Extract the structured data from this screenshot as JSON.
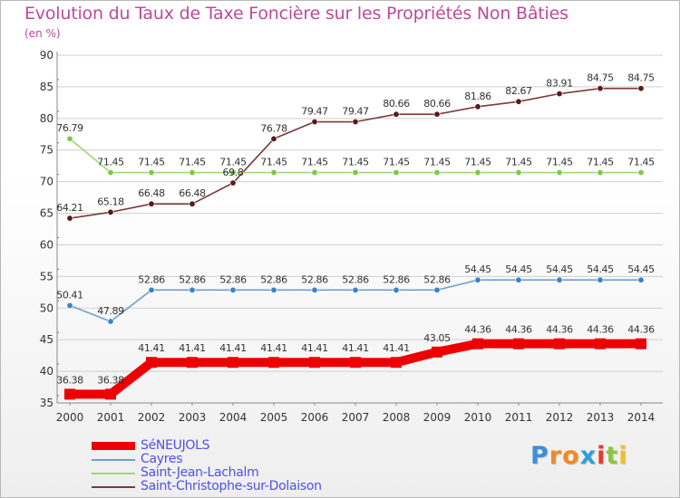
{
  "title": "Evolution du Taux de Taxe Foncière sur les Propriétés Non Bâties",
  "subtitle": "(en %)",
  "logo": {
    "letters": [
      "P",
      "r",
      "o",
      "x",
      "i",
      "t",
      "i"
    ],
    "colors": [
      "#3d8fd8",
      "#f08a24",
      "#f08a24",
      "#2f9fd8",
      "#e63b2e",
      "#8cc63f",
      "#f0c020"
    ]
  },
  "colors": {
    "title": "#c0489a",
    "axis_text": "#333333",
    "grid": "#cfcfcf",
    "legend_text": "#5050e6"
  },
  "chart_data": {
    "type": "line",
    "title": "Evolution du Taux de Taxe Foncière sur les Propriétés Non Bâties",
    "ylabel": "(en %)",
    "xlabel": "",
    "ylim": [
      35,
      90
    ],
    "yticks": [
      35,
      40,
      45,
      50,
      55,
      60,
      65,
      70,
      75,
      80,
      85,
      90
    ],
    "grid": "horizontal",
    "x": [
      "2000",
      "2001",
      "2002",
      "2003",
      "2004",
      "2005",
      "2006",
      "2007",
      "2008",
      "2009",
      "2010",
      "2011",
      "2012",
      "2013",
      "2014"
    ],
    "series": [
      {
        "name": "SéNEUJOLS",
        "color": "#ee0000",
        "thick": true,
        "values": [
          36.38,
          36.38,
          41.41,
          41.41,
          41.41,
          41.41,
          41.41,
          41.41,
          41.41,
          43.05,
          44.36,
          44.36,
          44.36,
          44.36,
          44.36
        ],
        "labels": [
          "36.38",
          "36.38",
          "41.41",
          "41.41",
          "41.41",
          "41.41",
          "41.41",
          "41.41",
          "41.41",
          "43.05",
          "44.36",
          "44.36",
          "44.36",
          "44.36",
          "44.36"
        ]
      },
      {
        "name": "Cayres",
        "color": "#6fa0d0",
        "marker": "#3a82c8",
        "values": [
          50.41,
          47.89,
          52.86,
          52.86,
          52.86,
          52.86,
          52.86,
          52.86,
          52.86,
          52.86,
          54.45,
          54.45,
          54.45,
          54.45,
          54.45
        ],
        "labels": [
          "50.41",
          "47.89",
          "52.86",
          "52.86",
          "52.86",
          "52.86",
          "52.86",
          "52.86",
          "52.86",
          "52.86",
          "54.45",
          "54.45",
          "54.45",
          "54.45",
          "54.45"
        ]
      },
      {
        "name": "Saint-Jean-Lachalm",
        "color": "#9ed87a",
        "marker": "#7ac943",
        "values": [
          76.79,
          71.45,
          71.45,
          71.45,
          71.45,
          71.45,
          71.45,
          71.45,
          71.45,
          71.45,
          71.45,
          71.45,
          71.45,
          71.45,
          71.45
        ],
        "labels": [
          "76.79",
          "71.45",
          "71.45",
          "71.45",
          "71.45",
          "71.45",
          "71.45",
          "71.45",
          "71.45",
          "71.45",
          "71.45",
          "71.45",
          "71.45",
          "71.45",
          "71.45"
        ]
      },
      {
        "name": "Saint-Christophe-sur-Dolaison",
        "color": "#7a3a3a",
        "marker": "#5a1a1a",
        "values": [
          64.21,
          65.18,
          66.48,
          66.48,
          69.8,
          76.78,
          79.47,
          79.47,
          80.66,
          80.66,
          81.86,
          82.67,
          83.91,
          84.75,
          84.75
        ],
        "labels": [
          "64.21",
          "65.18",
          "66.48",
          "66.48",
          "69.8",
          "76.78",
          "79.47",
          "79.47",
          "80.66",
          "80.66",
          "81.86",
          "82.67",
          "83.91",
          "84.75",
          "84.75"
        ]
      }
    ]
  }
}
